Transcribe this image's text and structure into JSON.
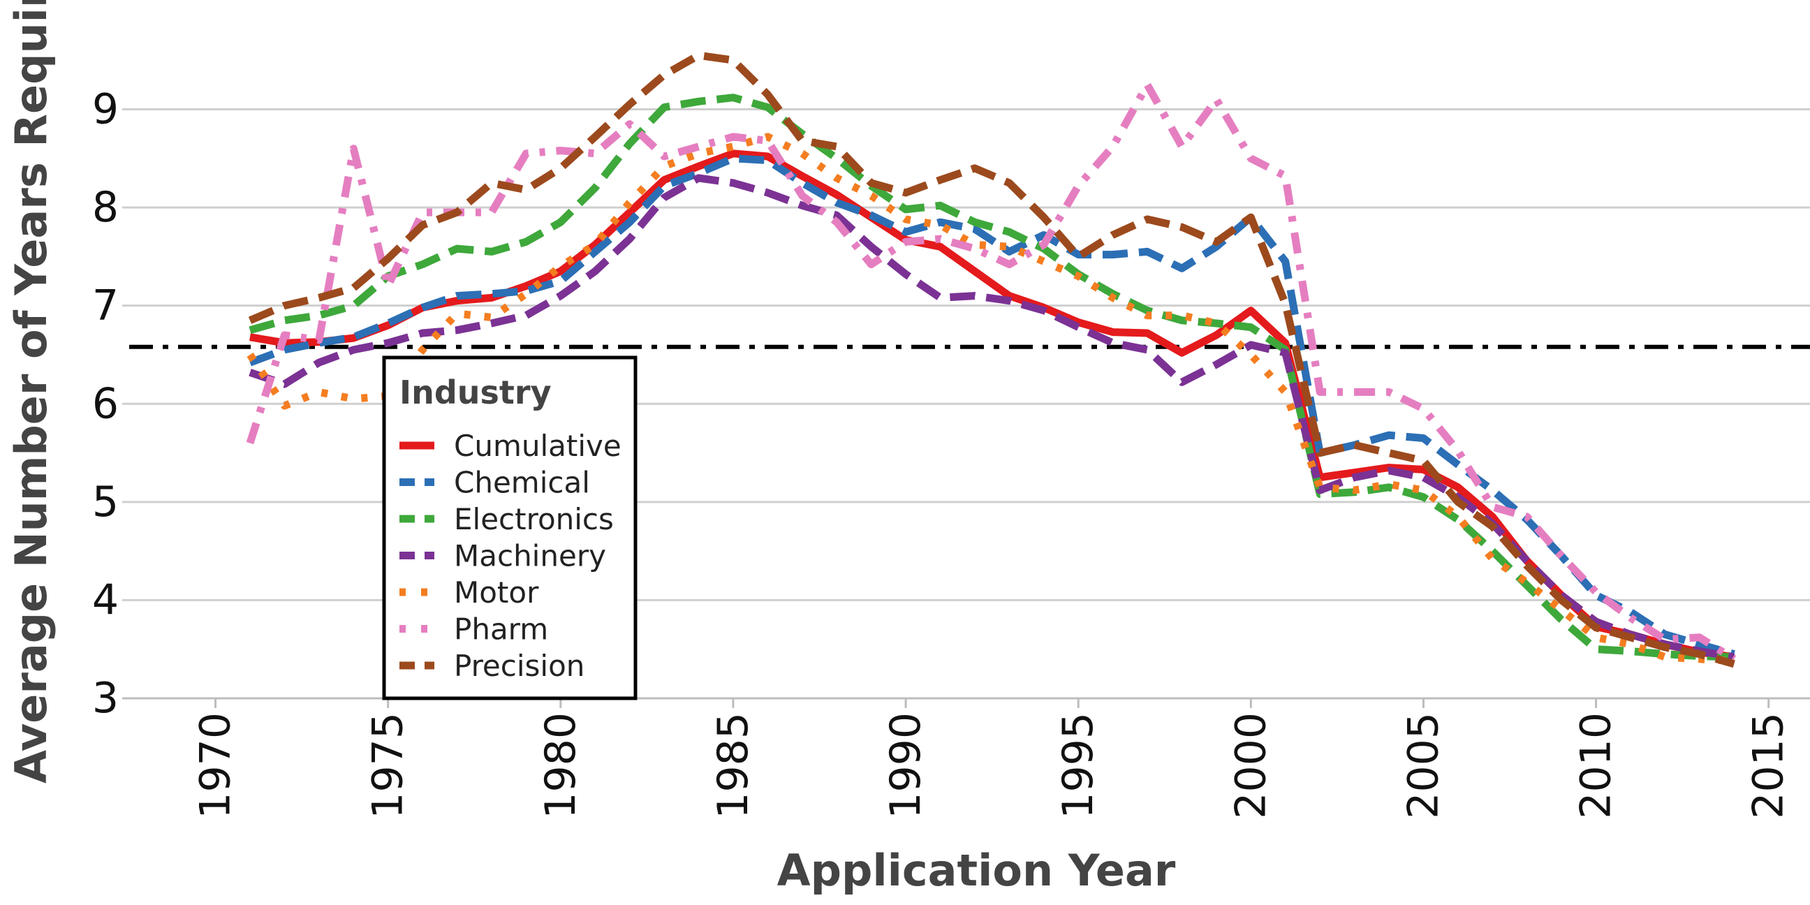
{
  "chart_data": {
    "type": "line",
    "xlabel": "Application Year",
    "ylabel": "Average Number of Years Required",
    "xlim": [
      1967.5,
      2016.2
    ],
    "ylim": [
      3,
      9.9
    ],
    "x_ticks": [
      "1970",
      "1975",
      "1980",
      "1985",
      "1990",
      "1995",
      "2000",
      "2005",
      "2010",
      "2015"
    ],
    "y_ticks": [
      "3",
      "4",
      "5",
      "6",
      "7",
      "8",
      "9"
    ],
    "grid": "horizontal",
    "reference_line": {
      "y": 6.58,
      "style": "dash-dot",
      "color": "#000000"
    },
    "legend": {
      "title": "Industry",
      "position": "lower-left inside"
    },
    "x": [
      1971,
      1972,
      1973,
      1974,
      1975,
      1976,
      1977,
      1978,
      1979,
      1980,
      1981,
      1982,
      1983,
      1984,
      1985,
      1986,
      1987,
      1988,
      1989,
      1990,
      1991,
      1992,
      1993,
      1994,
      1995,
      1996,
      1997,
      1998,
      1999,
      2000,
      2001,
      2002,
      2003,
      2004,
      2005,
      2006,
      2007,
      2008,
      2009,
      2010,
      2011,
      2012,
      2013,
      2014
    ],
    "series": [
      {
        "name": "Cumulative",
        "color": "#e41a1c",
        "dash": "solid",
        "values": [
          6.68,
          6.62,
          6.63,
          6.67,
          6.8,
          6.98,
          7.05,
          7.08,
          7.2,
          7.35,
          7.62,
          7.95,
          8.28,
          8.42,
          8.55,
          8.52,
          8.32,
          8.13,
          7.9,
          7.67,
          7.6,
          7.35,
          7.1,
          6.98,
          6.83,
          6.73,
          6.72,
          6.52,
          6.7,
          6.95,
          6.62,
          5.25,
          5.3,
          5.35,
          5.33,
          5.15,
          4.85,
          4.4,
          4.05,
          3.73,
          3.65,
          3.55,
          3.47,
          3.42
        ]
      },
      {
        "name": "Chemical",
        "color": "#2c6fb5",
        "dash": "long-dash",
        "values": [
          6.42,
          6.55,
          6.62,
          6.68,
          6.82,
          6.98,
          7.1,
          7.12,
          7.15,
          7.25,
          7.55,
          7.85,
          8.22,
          8.35,
          8.5,
          8.48,
          8.25,
          8.05,
          7.92,
          7.75,
          7.85,
          7.78,
          7.55,
          7.72,
          7.52,
          7.52,
          7.55,
          7.38,
          7.6,
          7.9,
          7.45,
          5.5,
          5.58,
          5.68,
          5.65,
          5.38,
          5.12,
          4.82,
          4.45,
          4.05,
          3.88,
          3.65,
          3.55,
          3.45
        ]
      },
      {
        "name": "Electronics",
        "color": "#3ea83b",
        "dash": "long-dash",
        "values": [
          6.75,
          6.85,
          6.9,
          7.0,
          7.3,
          7.42,
          7.58,
          7.55,
          7.65,
          7.85,
          8.2,
          8.65,
          9.02,
          9.08,
          9.12,
          9.02,
          8.75,
          8.5,
          8.22,
          7.98,
          8.02,
          7.85,
          7.75,
          7.58,
          7.32,
          7.12,
          6.95,
          6.85,
          6.82,
          6.78,
          6.55,
          5.08,
          5.1,
          5.15,
          5.05,
          4.82,
          4.5,
          4.15,
          3.8,
          3.5,
          3.48,
          3.45,
          3.43,
          3.42
        ]
      },
      {
        "name": "Machinery",
        "color": "#7b3294",
        "dash": "long-dash",
        "values": [
          6.32,
          6.2,
          6.42,
          6.55,
          6.62,
          6.72,
          6.75,
          6.82,
          6.9,
          7.1,
          7.35,
          7.68,
          8.1,
          8.3,
          8.25,
          8.15,
          8.02,
          7.92,
          7.6,
          7.32,
          7.08,
          7.1,
          7.05,
          6.95,
          6.78,
          6.62,
          6.55,
          6.22,
          6.4,
          6.6,
          6.52,
          5.12,
          5.25,
          5.32,
          5.25,
          5.05,
          4.78,
          4.4,
          4.05,
          3.78,
          3.65,
          3.55,
          3.48,
          3.42
        ]
      },
      {
        "name": "Motor",
        "color": "#f47d20",
        "dash": "dotted",
        "values": [
          6.5,
          5.98,
          6.12,
          6.05,
          6.08,
          6.55,
          6.92,
          6.88,
          7.12,
          7.4,
          7.62,
          8.05,
          8.42,
          8.55,
          8.62,
          8.72,
          8.55,
          8.3,
          8.12,
          7.88,
          7.82,
          7.62,
          7.6,
          7.45,
          7.3,
          7.08,
          6.9,
          6.9,
          6.82,
          6.5,
          6.12,
          5.15,
          5.12,
          5.18,
          5.12,
          4.85,
          4.42,
          4.18,
          3.9,
          3.62,
          3.55,
          3.42,
          3.4,
          3.38
        ]
      },
      {
        "name": "Pharm",
        "color": "#e57ec0",
        "dash": "dash-dot",
        "values": [
          5.6,
          6.7,
          6.65,
          8.6,
          7.2,
          7.95,
          7.95,
          7.95,
          8.55,
          8.58,
          8.55,
          8.85,
          8.52,
          8.62,
          8.72,
          8.68,
          8.12,
          7.85,
          7.42,
          7.65,
          7.68,
          7.58,
          7.42,
          7.62,
          8.22,
          8.62,
          9.25,
          8.62,
          9.1,
          8.5,
          8.32,
          6.12,
          6.12,
          6.12,
          5.95,
          5.52,
          4.95,
          4.85,
          4.45,
          4.08,
          3.82,
          3.6,
          3.62,
          3.4
        ]
      },
      {
        "name": "Precision",
        "color": "#9c4a1d",
        "dash": "long-dash",
        "values": [
          6.85,
          7.0,
          7.08,
          7.18,
          7.48,
          7.82,
          7.95,
          8.25,
          8.18,
          8.4,
          8.72,
          9.05,
          9.35,
          9.55,
          9.5,
          9.15,
          8.68,
          8.62,
          8.25,
          8.15,
          8.28,
          8.4,
          8.25,
          7.9,
          7.5,
          7.72,
          7.88,
          7.8,
          7.65,
          7.9,
          7.02,
          5.5,
          5.58,
          5.5,
          5.42,
          5.0,
          4.75,
          4.35,
          4.0,
          3.72,
          3.62,
          3.52,
          3.45,
          3.35
        ]
      }
    ]
  }
}
